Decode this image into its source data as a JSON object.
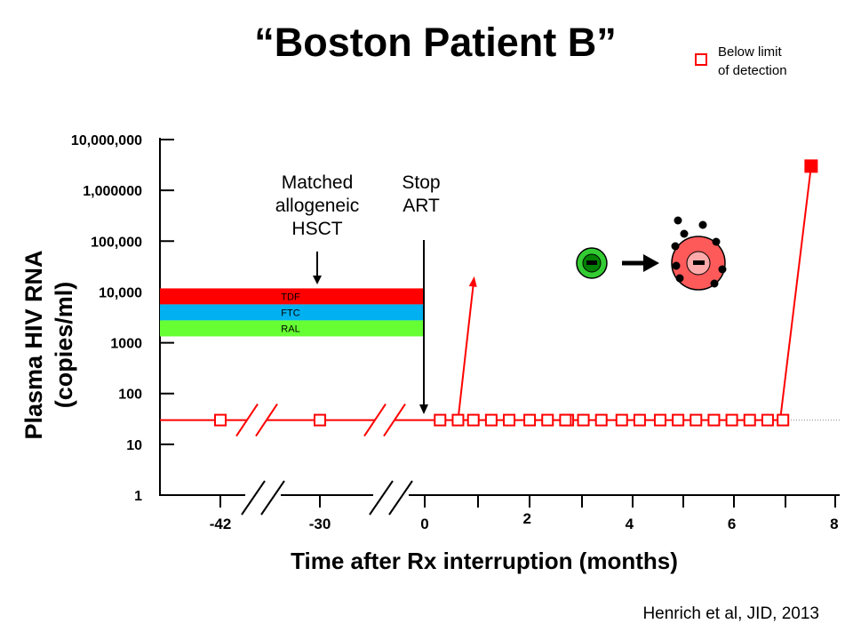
{
  "chart_data": {
    "type": "scatter",
    "title": "“Boston Patient B”",
    "xlabel": "Time after Rx interruption (months)",
    "ylabel_lines": [
      "Plasma HIV RNA",
      "(copies/ml)"
    ],
    "y_scale": "log",
    "ylim": [
      1,
      10000000
    ],
    "y_ticks": [
      1,
      10,
      100,
      1000,
      10000,
      100000,
      1000000,
      10000000
    ],
    "y_tick_labels": [
      "1",
      "10",
      "100",
      "1000",
      "10,000",
      "100,000",
      "1,000000",
      "10,000,000"
    ],
    "x_tick_labels": [
      {
        "x": -42,
        "label": "-42"
      },
      {
        "x": -30,
        "label": "-30"
      },
      {
        "x": 0,
        "label": "0"
      },
      {
        "x": 2,
        "label": "2"
      },
      {
        "x": 4,
        "label": "4"
      },
      {
        "x": 6,
        "label": "6"
      },
      {
        "x": 8,
        "label": "8"
      }
    ],
    "axis_breaks": "two breaks between -42 and 0 (broken axis)",
    "grid": false,
    "detection_limit_copies": 30,
    "series": [
      {
        "name": "Below limit of detection",
        "marker": "open-square",
        "color": "#ff0000",
        "x": [
          -42,
          -30,
          -0.1,
          0.3,
          0.65,
          0.95,
          1.3,
          1.65,
          2.05,
          2.4,
          2.75,
          3.1,
          3.45,
          3.85,
          4.2,
          4.6,
          4.95,
          5.3,
          5.65,
          6.0,
          6.35,
          6.7,
          7.0
        ],
        "y": [
          30,
          30,
          30,
          30,
          30,
          30,
          30,
          30,
          30,
          30,
          30,
          30,
          30,
          30,
          30,
          30,
          30,
          30,
          30,
          30,
          30,
          30,
          30
        ]
      },
      {
        "marker": "filled-square",
        "color": "#ff0000",
        "x": [
          7.55
        ],
        "y": [
          3000000
        ]
      }
    ],
    "arrows": [
      {
        "from": {
          "x": 0.65,
          "y": 30
        },
        "to": {
          "x": 0.95,
          "y": 18000
        },
        "color": "#ff0000"
      }
    ],
    "regimen_bars": [
      {
        "label": "TDF",
        "color": "#ff0000"
      },
      {
        "label": "FTC",
        "color": "#00b0f0"
      },
      {
        "label": "RAL",
        "color": "#66ff33"
      }
    ],
    "annotations": [
      {
        "text_lines": [
          "Matched",
          "allogeneic",
          "HSCT"
        ]
      },
      {
        "text_lines": [
          "Stop",
          "ART"
        ]
      }
    ],
    "legend": {
      "position": "top-right",
      "text_lines": [
        "Below limit",
        "of detection"
      ]
    },
    "cells_glyph": [
      "green-infected-cell-icon",
      "arrow-right-icon",
      "red-reactivated-cell-icon"
    ]
  },
  "citation": "Henrich et al, JID, 2013"
}
